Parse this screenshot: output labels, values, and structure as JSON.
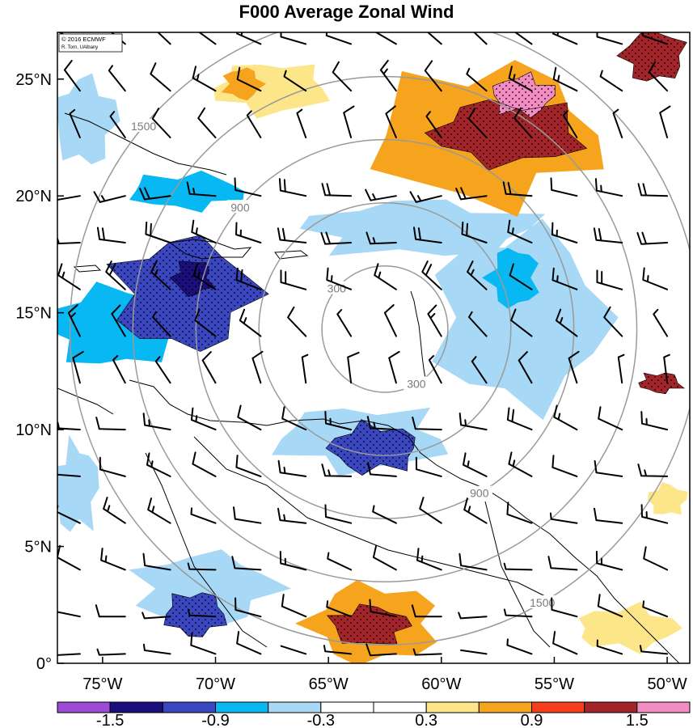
{
  "title": "F000 Average Zonal Wind",
  "credit": {
    "line1": "© 2016 ECMWF",
    "line2": "R. Torn, UAlbany"
  },
  "map": {
    "lon_range": [
      -77,
      -49
    ],
    "lat_range": [
      0,
      27
    ],
    "lon_ticks": [
      {
        "value": -75,
        "label": "75°W"
      },
      {
        "value": -70,
        "label": "70°W"
      },
      {
        "value": -65,
        "label": "65°W"
      },
      {
        "value": -60,
        "label": "60°W"
      },
      {
        "value": -55,
        "label": "55°W"
      },
      {
        "value": -50,
        "label": "50°W"
      }
    ],
    "lat_ticks": [
      {
        "value": 0,
        "label": "0°"
      },
      {
        "value": 5,
        "label": "5°N"
      },
      {
        "value": 10,
        "label": "10°N"
      },
      {
        "value": 15,
        "label": "15°N"
      },
      {
        "value": 20,
        "label": "20°N"
      },
      {
        "value": 25,
        "label": "25°N"
      }
    ],
    "range_rings": {
      "center": {
        "lon": -62.5,
        "lat": 14.3
      },
      "rings": [
        {
          "radius_km": 300,
          "label": "300"
        },
        {
          "radius_km": 600,
          "label": ""
        },
        {
          "radius_km": 900,
          "label": "900"
        },
        {
          "radius_km": 1200,
          "label": ""
        },
        {
          "radius_km": 1500,
          "label": "1500"
        }
      ],
      "color": "#9a9a9a"
    },
    "anomaly_fields": [
      {
        "level": -1.2,
        "lon": -71.4,
        "lat": 15.8,
        "rlon": 3.6,
        "rlat": 2.8
      },
      {
        "level": -0.6,
        "lon": -74.5,
        "lat": 14.4,
        "rlon": 3.5,
        "rlat": 2.0
      },
      {
        "level": -1.5,
        "lon": -71.0,
        "lat": 16.5,
        "rlon": 1.0,
        "rlat": 0.9
      },
      {
        "level": -0.6,
        "lon": -71.3,
        "lat": 20.2,
        "rlon": 3.0,
        "rlat": 0.9
      },
      {
        "level": -0.3,
        "lon": -75.8,
        "lat": 23.2,
        "rlon": 1.6,
        "rlat": 2.2
      },
      {
        "level": -0.9,
        "lon": -63.0,
        "lat": 9.2,
        "rlon": 2.3,
        "rlat": 1.2
      },
      {
        "level": -0.5,
        "lon": -63.5,
        "lat": 9.6,
        "rlon": 4.5,
        "rlat": 1.6
      },
      {
        "level": -0.3,
        "lon": -56.5,
        "lat": 14.8,
        "rlon": 4.5,
        "rlat": 4.5
      },
      {
        "level": -0.3,
        "lon": -61.0,
        "lat": 18.6,
        "rlon": 6.0,
        "rlat": 1.4
      },
      {
        "level": -0.6,
        "lon": -56.8,
        "lat": 16.5,
        "rlon": 1.3,
        "rlat": 1.5
      },
      {
        "level": -0.9,
        "lon": -70.9,
        "lat": 2.1,
        "rlon": 1.6,
        "rlat": 1.1
      },
      {
        "level": -0.3,
        "lon": -70.5,
        "lat": 3.2,
        "rlon": 3.6,
        "rlat": 1.8
      },
      {
        "level": -0.3,
        "lon": -76.2,
        "lat": 7.5,
        "rlon": 1.2,
        "rlat": 2.2
      },
      {
        "level": 1.2,
        "lon": -57.0,
        "lat": 22.7,
        "rlon": 4.0,
        "rlat": 1.6
      },
      {
        "level": 0.7,
        "lon": -58.0,
        "lat": 22.6,
        "rlon": 6.0,
        "rlat": 3.5
      },
      {
        "level": 1.5,
        "lon": -56.4,
        "lat": 24.3,
        "rlon": 1.6,
        "rlat": 1.0
      },
      {
        "level": 1.2,
        "lon": -50.6,
        "lat": 26.0,
        "rlon": 1.6,
        "rlat": 1.3
      },
      {
        "level": 0.4,
        "lon": -67.5,
        "lat": 24.6,
        "rlon": 3.0,
        "rlat": 1.3
      },
      {
        "level": 0.7,
        "lon": -68.8,
        "lat": 24.8,
        "rlon": 1.0,
        "rlat": 0.8
      },
      {
        "level": 1.2,
        "lon": -63.2,
        "lat": 1.6,
        "rlon": 2.0,
        "rlat": 1.0
      },
      {
        "level": 0.7,
        "lon": -63.0,
        "lat": 1.7,
        "rlon": 3.4,
        "rlat": 2.0
      },
      {
        "level": 1.2,
        "lon": -50.3,
        "lat": 12.0,
        "rlon": 1.1,
        "rlat": 0.5
      },
      {
        "level": 0.4,
        "lon": -51.8,
        "lat": 1.5,
        "rlon": 2.6,
        "rlat": 1.1
      },
      {
        "level": 0.4,
        "lon": -50.0,
        "lat": 7.0,
        "rlon": 1.0,
        "rlat": 0.8
      }
    ],
    "wind_barbs": {
      "rows": [
        {
          "lat": 26.5,
          "dir": 300,
          "speed": 12
        },
        {
          "lat": 24.5,
          "dir": 310,
          "speed": 12
        },
        {
          "lat": 22.5,
          "dir": 330,
          "speed": 10
        },
        {
          "lat": 20.0,
          "dir": 270,
          "speed": 18
        },
        {
          "lat": 18.0,
          "dir": 280,
          "speed": 20
        },
        {
          "lat": 16.0,
          "dir": 300,
          "speed": 18
        },
        {
          "lat": 14.0,
          "dir": 320,
          "speed": 12
        },
        {
          "lat": 12.0,
          "dir": 340,
          "speed": 10
        },
        {
          "lat": 10.0,
          "dir": 285,
          "speed": 16
        },
        {
          "lat": 8.0,
          "dir": 285,
          "speed": 14
        },
        {
          "lat": 6.0,
          "dir": 290,
          "speed": 12
        },
        {
          "lat": 4.0,
          "dir": 285,
          "speed": 12
        },
        {
          "lat": 2.0,
          "dir": 280,
          "speed": 10
        },
        {
          "lat": 0.4,
          "dir": 280,
          "speed": 8
        }
      ],
      "lons": [
        -76,
        -74,
        -72,
        -70,
        -68,
        -66,
        -64,
        -62,
        -60,
        -58,
        -56,
        -54,
        -52,
        -50
      ]
    },
    "stipple_threshold": 0.9
  },
  "colorbar": {
    "colors": [
      "#9d4ad6",
      "#1b0f7e",
      "#3b46c1",
      "#08b8f2",
      "#a7d8f5",
      "#ffffff",
      "#ffffff",
      "#fde58a",
      "#f6a41e",
      "#f6401c",
      "#a3252a",
      "#f28cc2"
    ],
    "labels": [
      {
        "index": 1,
        "text": "-1.5"
      },
      {
        "index": 3,
        "text": "-0.9"
      },
      {
        "index": 5,
        "text": "-0.3"
      },
      {
        "index": 7,
        "text": "0.3"
      },
      {
        "index": 9,
        "text": "0.9"
      },
      {
        "index": 11,
        "text": "1.5"
      }
    ]
  }
}
